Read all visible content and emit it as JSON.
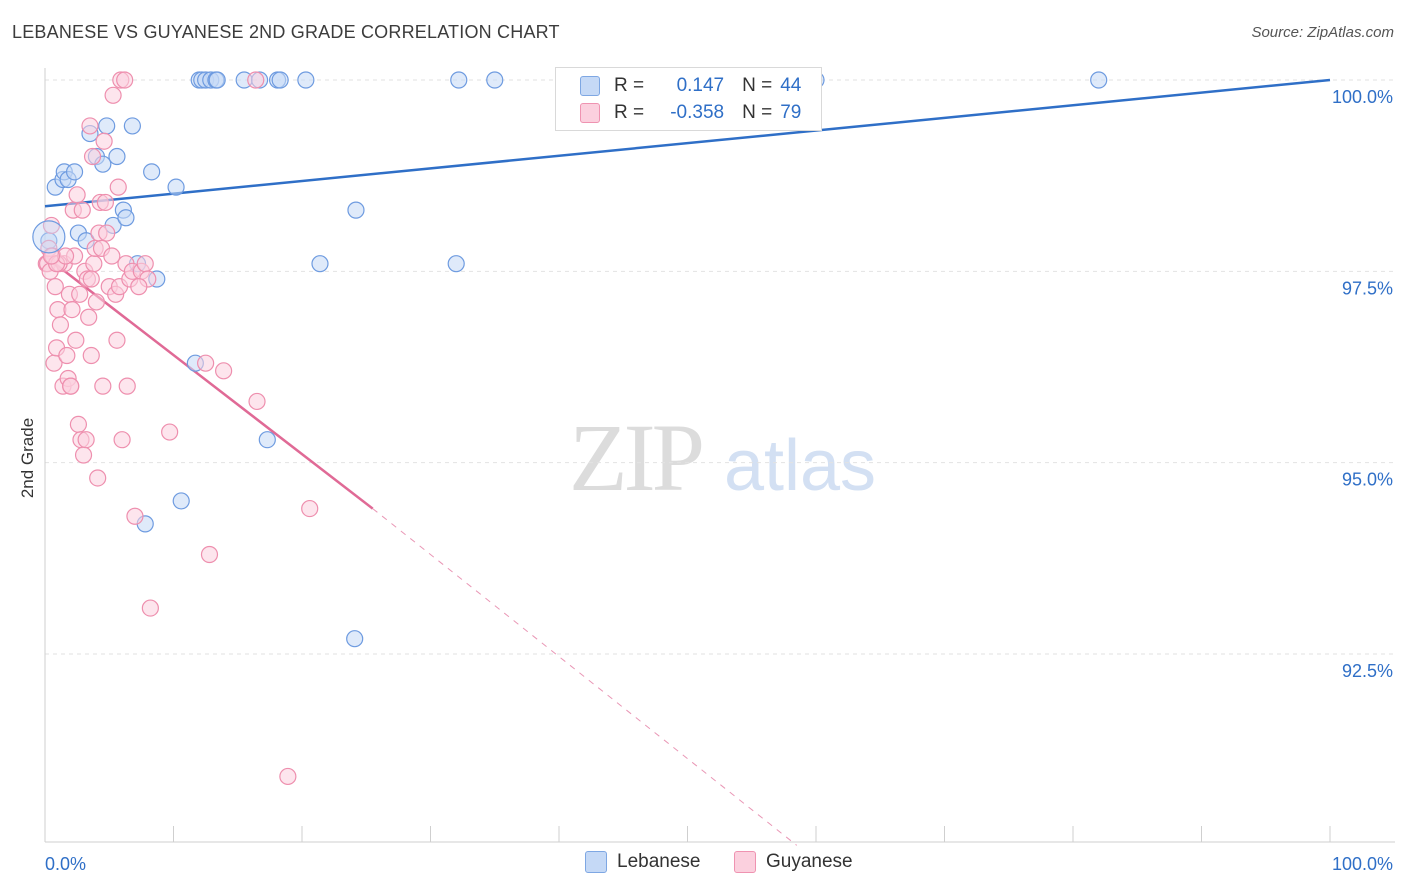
{
  "title": "LEBANESE VS GUYANESE 2ND GRADE CORRELATION CHART",
  "source": "Source: ZipAtlas.com",
  "watermark": {
    "zip": "ZIP",
    "atlas": "atlas"
  },
  "legend": {
    "rows": [
      {
        "r_label": "R =",
        "r_value": "0.147",
        "n_label": "N =",
        "n_value": "44"
      },
      {
        "r_label": "R =",
        "r_value": "-0.358",
        "n_label": "N =",
        "n_value": "79"
      }
    ]
  },
  "bottom_legend": [
    "Lebanese",
    "Guyanese"
  ],
  "colors": {
    "blue_fill": "#c5d9f6",
    "blue_stroke": "#6e9be0",
    "blue_line": "#2f6fc7",
    "pink_fill": "#fbd0de",
    "pink_stroke": "#ee8fae",
    "pink_line": "#e06a96",
    "tick_text": "#2f6fc7",
    "grid": "#e2e2e2"
  },
  "chart_data": {
    "type": "scatter",
    "title": "LEBANESE VS GUYANESE 2ND GRADE CORRELATION CHART",
    "xlabel": "",
    "ylabel": "2nd Grade",
    "xlim": [
      0,
      100
    ],
    "ylim": [
      90.0,
      100.25
    ],
    "x_tick_labels": [
      "0.0%",
      "100.0%"
    ],
    "y_ticks": [
      92.5,
      95.0,
      97.5,
      100.0
    ],
    "y_tick_labels": [
      "92.5%",
      "95.0%",
      "97.5%",
      "100.0%"
    ],
    "grid": true,
    "series": [
      {
        "name": "Lebanese",
        "points": [
          [
            0.3,
            97.9
          ],
          [
            0.8,
            98.6
          ],
          [
            1.4,
            98.7
          ],
          [
            1.5,
            98.8
          ],
          [
            1.8,
            98.7
          ],
          [
            2.3,
            98.8
          ],
          [
            2.6,
            98.0
          ],
          [
            3.2,
            97.9
          ],
          [
            3.5,
            99.3
          ],
          [
            4.0,
            99.0
          ],
          [
            4.5,
            98.9
          ],
          [
            4.8,
            99.4
          ],
          [
            5.6,
            99.0
          ],
          [
            5.3,
            98.1
          ],
          [
            6.1,
            98.3
          ],
          [
            6.3,
            98.2
          ],
          [
            6.8,
            99.4
          ],
          [
            7.2,
            97.6
          ],
          [
            8.3,
            98.8
          ],
          [
            8.7,
            97.4
          ],
          [
            10.2,
            98.6
          ],
          [
            10.6,
            94.5
          ],
          [
            12.0,
            100.0
          ],
          [
            12.2,
            100.0
          ],
          [
            12.5,
            100.0
          ],
          [
            12.9,
            100.0
          ],
          [
            13.3,
            100.0
          ],
          [
            13.4,
            100.0
          ],
          [
            11.7,
            96.3
          ],
          [
            15.5,
            100.0
          ],
          [
            16.7,
            100.0
          ],
          [
            18.1,
            100.0
          ],
          [
            18.3,
            100.0
          ],
          [
            20.3,
            100.0
          ],
          [
            7.8,
            94.2
          ],
          [
            17.3,
            95.3
          ],
          [
            21.4,
            97.6
          ],
          [
            24.2,
            98.3
          ],
          [
            24.1,
            92.7
          ],
          [
            32.0,
            97.6
          ],
          [
            32.2,
            100.0
          ],
          [
            35.0,
            100.0
          ],
          [
            60.0,
            100.0
          ],
          [
            82.0,
            100.0
          ]
        ],
        "trend": {
          "x": [
            0,
            100
          ],
          "y": [
            98.35,
            100.0
          ]
        }
      },
      {
        "name": "Guyanese",
        "points": [
          [
            0.1,
            97.6
          ],
          [
            0.2,
            97.6
          ],
          [
            0.3,
            97.8
          ],
          [
            0.4,
            97.5
          ],
          [
            0.5,
            98.1
          ],
          [
            0.6,
            97.7
          ],
          [
            0.7,
            96.3
          ],
          [
            0.8,
            97.3
          ],
          [
            0.9,
            96.5
          ],
          [
            1.0,
            97.0
          ],
          [
            1.2,
            96.8
          ],
          [
            1.4,
            96.0
          ],
          [
            1.5,
            97.6
          ],
          [
            1.7,
            96.4
          ],
          [
            1.8,
            96.1
          ],
          [
            1.9,
            97.2
          ],
          [
            2.0,
            96.0
          ],
          [
            2.1,
            97.0
          ],
          [
            2.2,
            98.3
          ],
          [
            2.4,
            96.6
          ],
          [
            2.5,
            98.5
          ],
          [
            2.6,
            95.5
          ],
          [
            2.7,
            97.2
          ],
          [
            2.8,
            95.3
          ],
          [
            2.9,
            98.3
          ],
          [
            3.0,
            95.1
          ],
          [
            3.1,
            97.5
          ],
          [
            3.2,
            95.3
          ],
          [
            3.3,
            97.4
          ],
          [
            3.4,
            96.9
          ],
          [
            3.5,
            99.4
          ],
          [
            3.6,
            96.4
          ],
          [
            3.7,
            99.0
          ],
          [
            3.8,
            97.6
          ],
          [
            3.9,
            97.8
          ],
          [
            4.0,
            97.1
          ],
          [
            4.1,
            94.8
          ],
          [
            4.2,
            98.0
          ],
          [
            4.3,
            98.4
          ],
          [
            4.4,
            97.8
          ],
          [
            4.5,
            96.0
          ],
          [
            4.6,
            99.2
          ],
          [
            4.7,
            98.4
          ],
          [
            4.8,
            98.0
          ],
          [
            5.0,
            97.3
          ],
          [
            5.2,
            97.7
          ],
          [
            5.3,
            99.8
          ],
          [
            5.5,
            97.2
          ],
          [
            5.6,
            96.6
          ],
          [
            5.7,
            98.6
          ],
          [
            5.8,
            97.3
          ],
          [
            5.9,
            100.0
          ],
          [
            6.0,
            95.3
          ],
          [
            6.2,
            100.0
          ],
          [
            6.3,
            97.6
          ],
          [
            6.4,
            96.0
          ],
          [
            6.6,
            97.4
          ],
          [
            6.8,
            97.5
          ],
          [
            7.0,
            94.3
          ],
          [
            7.5,
            97.5
          ],
          [
            7.8,
            97.6
          ],
          [
            8.0,
            97.4
          ],
          [
            8.2,
            93.1
          ],
          [
            9.7,
            95.4
          ],
          [
            12.5,
            96.3
          ],
          [
            12.8,
            93.8
          ],
          [
            13.9,
            96.2
          ],
          [
            16.4,
            100.0
          ],
          [
            16.5,
            95.8
          ],
          [
            18.9,
            90.9
          ],
          [
            20.6,
            94.4
          ],
          [
            1.1,
            97.6
          ],
          [
            2.3,
            97.7
          ],
          [
            0.9,
            97.6
          ],
          [
            1.6,
            97.7
          ],
          [
            3.6,
            97.4
          ],
          [
            0.5,
            97.7
          ],
          [
            2.0,
            96.0
          ],
          [
            7.3,
            97.3
          ]
        ],
        "trend": {
          "x": [
            0,
            25.5
          ],
          "y": [
            97.7,
            94.4
          ]
        },
        "trend_extension": {
          "x": [
            25.5,
            58.5
          ],
          "y": [
            94.4,
            90.0
          ]
        }
      }
    ]
  }
}
